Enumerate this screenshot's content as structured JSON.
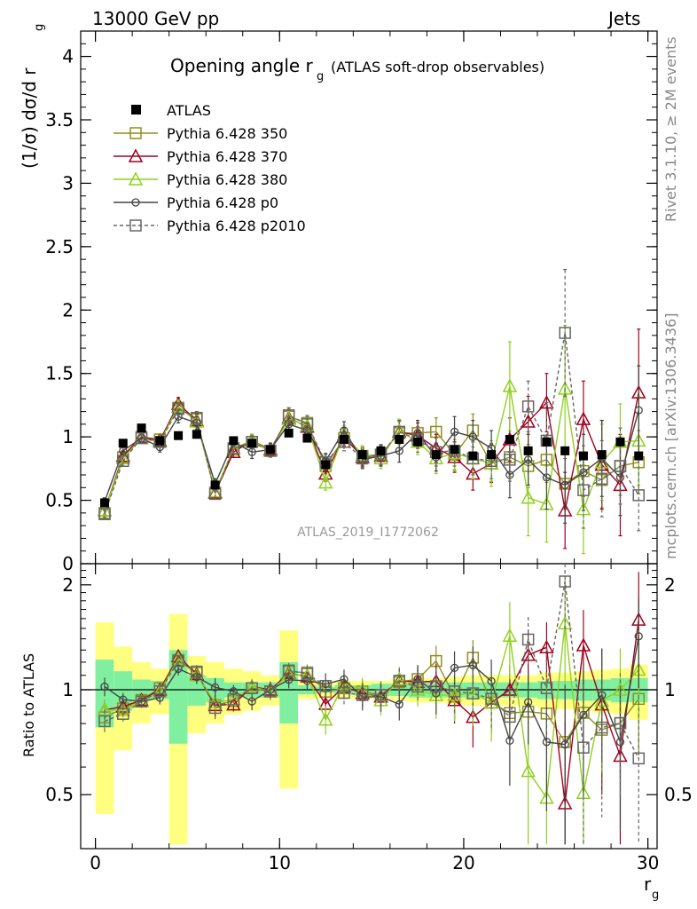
{
  "header": {
    "left": "13000 GeV pp",
    "right": "Jets"
  },
  "side_labels": {
    "rivet": "Rivet 3.1.10, ≥ 2M events",
    "mcplots": "mcplots.cern.ch [arXiv:1306.3436]"
  },
  "chart_data": {
    "type": "scatter",
    "title": "Opening angle r",
    "title_sub": "g",
    "title_note": "(ATLAS soft-drop observables)",
    "watermark": "ATLAS_2019_I1772062",
    "xlabel": "r",
    "xlabel_sub": "g",
    "ylabel": "(1/σ) dσ/d r",
    "ylabel_sub": "g",
    "ratio_ylabel": "Ratio to ATLAS",
    "xlim": [
      -0.8,
      30.5
    ],
    "ylim": [
      0,
      4.2
    ],
    "ratio_ylim": [
      0.35,
      2.3
    ],
    "x_ticks": [
      "0",
      "10",
      "20",
      "30"
    ],
    "y_ticks": [
      "0",
      "0.5",
      "1",
      "1.5",
      "2",
      "2.5",
      "3",
      "3.5",
      "4"
    ],
    "ratio_ticks": [
      "0.5",
      "1",
      "2"
    ],
    "legend_position": "top-left",
    "x": [
      0.5,
      1.5,
      2.5,
      3.5,
      4.5,
      5.5,
      6.5,
      7.5,
      8.5,
      9.5,
      10.5,
      11.5,
      12.5,
      13.5,
      14.5,
      15.5,
      16.5,
      17.5,
      18.5,
      19.5,
      20.5,
      21.5,
      22.5,
      23.5,
      24.5,
      25.5,
      26.5,
      27.5,
      28.5,
      29.5
    ],
    "data": {
      "name": "ATLAS",
      "values": [
        0.48,
        0.95,
        1.07,
        0.97,
        1.01,
        1.02,
        0.62,
        0.97,
        0.95,
        0.9,
        1.03,
        0.99,
        0.78,
        0.98,
        0.86,
        0.89,
        0.98,
        0.96,
        0.86,
        0.9,
        0.85,
        0.86,
        0.98,
        0.89,
        0.96,
        0.89,
        0.85,
        0.86,
        0.96,
        0.85
      ]
    },
    "series": [
      {
        "name": "Pythia 6.428 350",
        "color": "#8f8f1f",
        "marker": "square",
        "values": [
          0.4,
          0.84,
          1.0,
          0.98,
          1.23,
          1.14,
          0.56,
          0.9,
          0.96,
          0.89,
          1.16,
          1.11,
          0.77,
          0.99,
          0.85,
          0.86,
          1.03,
          1.03,
          1.04,
          0.86,
          1.05,
          0.79,
          0.84,
          0.77,
          0.82,
          0.63,
          0.73,
          0.66,
          0.77,
          0.8
        ],
        "err": [
          0.03,
          0.04,
          0.04,
          0.04,
          0.05,
          0.05,
          0.04,
          0.04,
          0.05,
          0.05,
          0.06,
          0.06,
          0.06,
          0.07,
          0.07,
          0.08,
          0.09,
          0.1,
          0.11,
          0.12,
          0.13,
          0.14,
          0.15,
          0.17,
          0.18,
          0.2,
          0.2,
          0.22,
          0.23,
          0.25
        ]
      },
      {
        "name": "Pythia 6.428 370",
        "color": "#a2001e",
        "marker": "triangle",
        "values": [
          0.42,
          0.85,
          1.0,
          0.97,
          1.26,
          1.13,
          0.56,
          0.88,
          0.97,
          0.9,
          1.15,
          1.08,
          0.71,
          1.0,
          0.84,
          0.85,
          1.04,
          1.01,
          0.91,
          0.84,
          0.71,
          0.79,
          0.98,
          1.12,
          1.27,
          0.42,
          1.14,
          0.78,
          0.62,
          1.35
        ],
        "err": [
          0.03,
          0.04,
          0.04,
          0.04,
          0.05,
          0.05,
          0.04,
          0.04,
          0.05,
          0.05,
          0.06,
          0.06,
          0.06,
          0.07,
          0.07,
          0.08,
          0.09,
          0.1,
          0.11,
          0.12,
          0.13,
          0.15,
          0.17,
          0.2,
          0.23,
          0.3,
          0.3,
          0.35,
          0.4,
          0.5
        ]
      },
      {
        "name": "Pythia 6.428 380",
        "color": "#8fd11f",
        "marker": "triangle",
        "values": [
          0.42,
          0.83,
          0.99,
          0.96,
          1.24,
          1.12,
          0.57,
          0.91,
          0.97,
          0.89,
          1.14,
          1.09,
          0.64,
          1.02,
          0.86,
          0.83,
          1.05,
          0.96,
          0.83,
          0.87,
          0.83,
          0.79,
          1.4,
          0.52,
          0.47,
          1.38,
          0.43,
          0.8,
          0.96,
          0.97
        ],
        "err": [
          0.03,
          0.04,
          0.04,
          0.04,
          0.05,
          0.05,
          0.04,
          0.04,
          0.05,
          0.05,
          0.06,
          0.06,
          0.06,
          0.07,
          0.07,
          0.08,
          0.09,
          0.1,
          0.12,
          0.14,
          0.16,
          0.18,
          0.35,
          0.3,
          0.3,
          0.5,
          0.35,
          0.3,
          0.3,
          0.35
        ]
      },
      {
        "name": "Pythia 6.428 p0",
        "color": "#444444",
        "marker": "circle",
        "values": [
          0.49,
          0.89,
          0.99,
          0.92,
          1.16,
          1.11,
          0.63,
          0.96,
          0.88,
          0.9,
          1.1,
          1.05,
          0.81,
          1.05,
          0.82,
          0.85,
          0.89,
          1.03,
          0.84,
          1.04,
          1.0,
          0.91,
          0.7,
          0.82,
          0.68,
          0.62,
          0.72,
          0.83,
          0.68,
          1.21
        ],
        "err": [
          0.03,
          0.04,
          0.04,
          0.04,
          0.05,
          0.05,
          0.04,
          0.04,
          0.05,
          0.05,
          0.06,
          0.06,
          0.06,
          0.07,
          0.07,
          0.08,
          0.09,
          0.1,
          0.11,
          0.12,
          0.13,
          0.14,
          0.18,
          0.2,
          0.25,
          0.3,
          0.3,
          0.3,
          0.3,
          0.35
        ]
      },
      {
        "name": "Pythia 6.428 p2010",
        "color": "#666666",
        "marker": "square",
        "dashed": true,
        "values": [
          0.39,
          0.81,
          0.99,
          0.96,
          1.22,
          1.15,
          0.55,
          0.91,
          0.96,
          0.89,
          1.17,
          1.1,
          0.8,
          0.96,
          0.83,
          0.86,
          1.04,
          0.98,
          0.88,
          0.89,
          0.83,
          0.81,
          0.82,
          1.24,
          0.97,
          1.82,
          0.58,
          0.67,
          0.77,
          0.54
        ],
        "err": [
          0.03,
          0.04,
          0.04,
          0.04,
          0.05,
          0.05,
          0.04,
          0.04,
          0.05,
          0.05,
          0.06,
          0.06,
          0.06,
          0.07,
          0.07,
          0.08,
          0.09,
          0.1,
          0.11,
          0.12,
          0.13,
          0.14,
          0.17,
          0.2,
          0.3,
          0.5,
          0.3,
          0.3,
          0.3,
          0.28
        ]
      }
    ],
    "ratio_band_green_halfwidth": [
      0.22,
      0.13,
      0.07,
      0.06,
      0.3,
      0.1,
      0.08,
      0.05,
      0.05,
      0.05,
      0.2,
      0.03,
      0.02,
      0.03,
      0.03,
      0.04,
      0.04,
      0.05,
      0.05,
      0.05,
      0.05,
      0.05,
      0.05,
      0.05,
      0.06,
      0.06,
      0.07,
      0.07,
      0.08,
      0.08
    ],
    "ratio_band_yellow_halfwidth": [
      0.56,
      0.33,
      0.2,
      0.15,
      0.65,
      0.25,
      0.2,
      0.15,
      0.13,
      0.1,
      0.48,
      0.06,
      0.05,
      0.06,
      0.06,
      0.06,
      0.07,
      0.08,
      0.08,
      0.09,
      0.1,
      0.1,
      0.1,
      0.1,
      0.12,
      0.12,
      0.13,
      0.14,
      0.15,
      0.18
    ]
  }
}
